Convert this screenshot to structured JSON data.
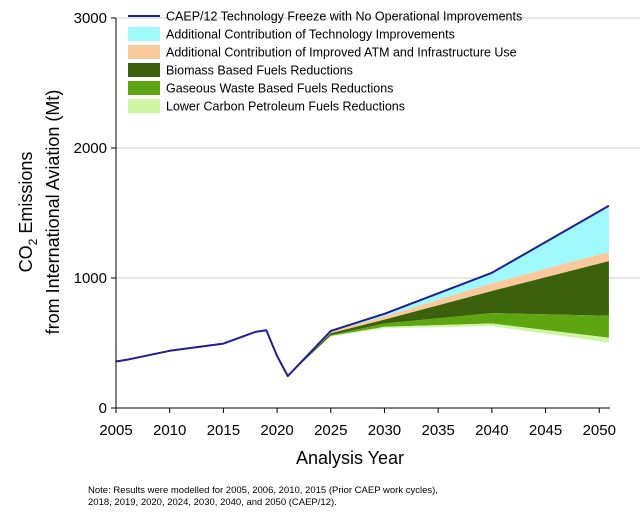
{
  "note": {
    "line1": "Note: Results were modelled for 2005, 2006, 2010, 2015 (Prior CAEP work cycles),",
    "line2": "2018, 2019, 2020, 2024, 2030, 2040, and 2050 (CAEP/12)."
  },
  "chart_data": {
    "type": "area",
    "xlabel": "Analysis Year",
    "ylabel_line1": "CO",
    "ylabel_sub": "2",
    "ylabel_line1_rest": " Emissions",
    "ylabel_line2": "from International Aviation (Mt)",
    "xlim": [
      2005,
      2051
    ],
    "ylim": [
      0,
      3000
    ],
    "x_ticks": [
      2005,
      2010,
      2015,
      2020,
      2025,
      2030,
      2035,
      2040,
      2045,
      2050
    ],
    "y_ticks": [
      0,
      1000,
      2000,
      3000
    ],
    "grid": "horizontal",
    "legend_position": "top",
    "history": {
      "x": [
        2005,
        2006,
        2010,
        2015,
        2018,
        2019,
        2020,
        2021
      ],
      "y": [
        358,
        371,
        440,
        495,
        585,
        598,
        400,
        245
      ]
    },
    "future_x": [
      2021,
      2025,
      2030,
      2040,
      2050
    ],
    "series": [
      {
        "name": "CAEP/12 Technology Freeze with No Operational Improvements",
        "kind": "line",
        "color": "#1f1f8f",
        "values": [
          245,
          593,
          725,
          1040,
          1555
        ]
      },
      {
        "name": "Additional Contribution of Technology Improvements",
        "kind": "area",
        "color": "#9ff8fb",
        "values": [
          245,
          585,
          705,
          960,
          1200
        ]
      },
      {
        "name": "Additional Contribution of Improved ATM and Infrastructure Use",
        "kind": "area",
        "color": "#f9c99c",
        "values": [
          245,
          575,
          680,
          900,
          1130
        ]
      },
      {
        "name": "Biomass Based Fuels Reductions",
        "kind": "area",
        "color": "#3b610d",
        "values": [
          245,
          560,
          650,
          730,
          710
        ]
      },
      {
        "name": "Gaseous Waste Based Fuels Reductions",
        "kind": "area",
        "color": "#5ea512",
        "values": [
          245,
          555,
          625,
          650,
          540
        ]
      },
      {
        "name": "Lower Carbon Petroleum Fuels Reductions",
        "kind": "area",
        "color": "#cdf5a2",
        "values": [
          245,
          550,
          615,
          630,
          505
        ]
      }
    ]
  }
}
